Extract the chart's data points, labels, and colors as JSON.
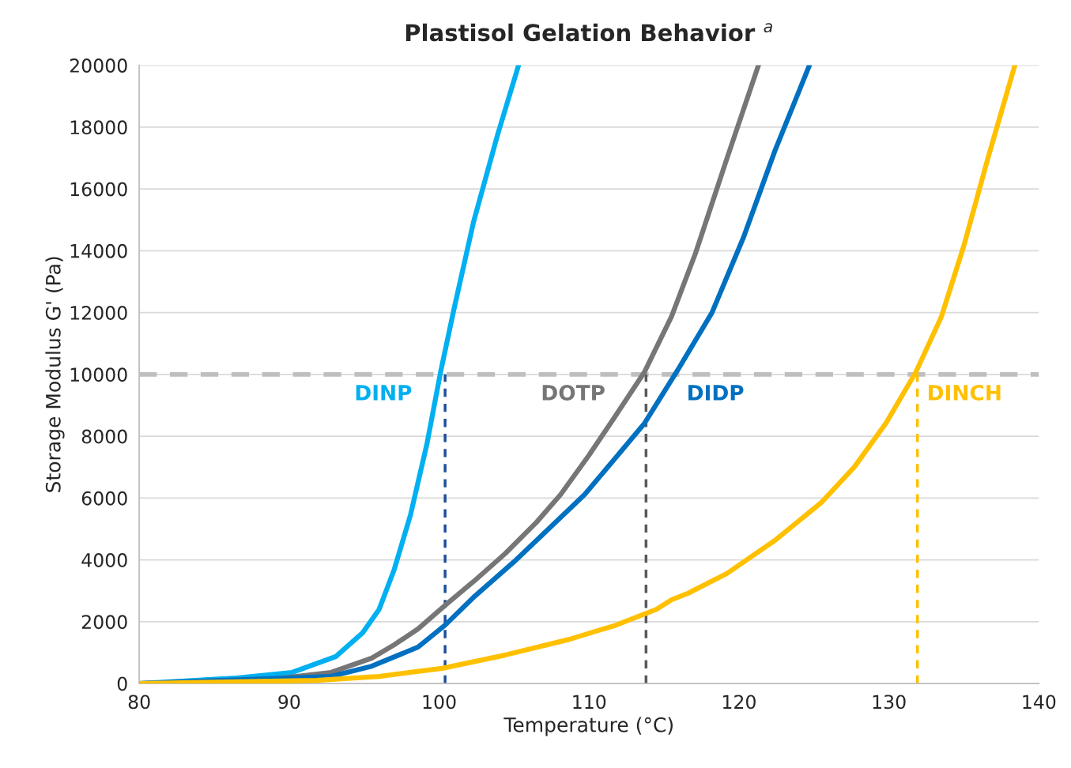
{
  "chart_data": {
    "type": "line",
    "title": "Plastisol Gelation Behavior $^{a}$",
    "xlabel": "Temperature (°C)",
    "ylabel": "Storage Modulus G' (Pa)",
    "xlim": [
      80,
      140
    ],
    "xticks": [
      80,
      90,
      100,
      110,
      120,
      130,
      140
    ],
    "ylim": [
      0,
      20000
    ],
    "yticks": [
      0,
      2000,
      4000,
      6000,
      8000,
      10000,
      12000,
      14000,
      16000,
      18000,
      20000
    ],
    "grid": "y",
    "legend": false,
    "line_style": "solid",
    "marker": "none",
    "series": [
      {
        "name": "DINP",
        "color": "#00b0f0",
        "x": [
          80,
          86.5,
          90.2,
          93.1,
          94.9,
          96,
          97,
          98.1,
          99.2,
          100.1,
          101,
          102.3,
          103.9,
          105.3
        ],
        "values": [
          0,
          180,
          360,
          870,
          1640,
          2400,
          3680,
          5470,
          7780,
          10080,
          12130,
          14940,
          17750,
          20000
        ]
      },
      {
        "name": "DOTP",
        "color": "#767676",
        "x": [
          80,
          89.1,
          92.8,
          95.5,
          97,
          98.6,
          100.4,
          102.3,
          104.4,
          106.5,
          108.1,
          110,
          111.6,
          113.7,
          115.5,
          117.1,
          119.2,
          121.3
        ],
        "values": [
          0,
          150,
          360,
          820,
          1250,
          1770,
          2530,
          3300,
          4200,
          5220,
          6110,
          7390,
          8540,
          10080,
          11870,
          13920,
          16990,
          20000
        ]
      },
      {
        "name": "DIDP",
        "color": "#0070c0",
        "x": [
          80,
          92.8,
          95.5,
          98.6,
          100.4,
          102.3,
          105,
          107.6,
          109.7,
          111.8,
          113.7,
          116,
          118.2,
          120.3,
          122.4,
          124.7
        ],
        "values": [
          0,
          230,
          560,
          1180,
          1890,
          2790,
          3940,
          5140,
          6110,
          7320,
          8420,
          10210,
          12000,
          14430,
          17240,
          20000
        ]
      },
      {
        "name": "DINCH",
        "color": "#ffc000",
        "x": [
          80,
          91.8,
          96,
          100.2,
          104.4,
          108.7,
          111.8,
          114.5,
          115.5,
          116.6,
          119.2,
          122.4,
          125.5,
          127.7,
          129.8,
          131.8,
          133.5,
          135,
          136.6,
          138.4
        ],
        "values": [
          0,
          100,
          230,
          490,
          920,
          1430,
          1890,
          2400,
          2710,
          2920,
          3560,
          4630,
          5860,
          7010,
          8420,
          10080,
          11870,
          14170,
          16990,
          20000
        ]
      }
    ],
    "ref_lines": [
      {
        "axis": "y",
        "value": 10000,
        "color": "#bfbfbf",
        "line_style": "dashed"
      },
      {
        "axis": "x",
        "value": 100.4,
        "color": "#1f4e9c",
        "line_style": "dashed"
      },
      {
        "axis": "x",
        "value": 113.8,
        "color": "#595959",
        "line_style": "dashed"
      },
      {
        "axis": "x",
        "value": 131.9,
        "color": "#ffc000",
        "line_style": "dashed"
      }
    ]
  }
}
